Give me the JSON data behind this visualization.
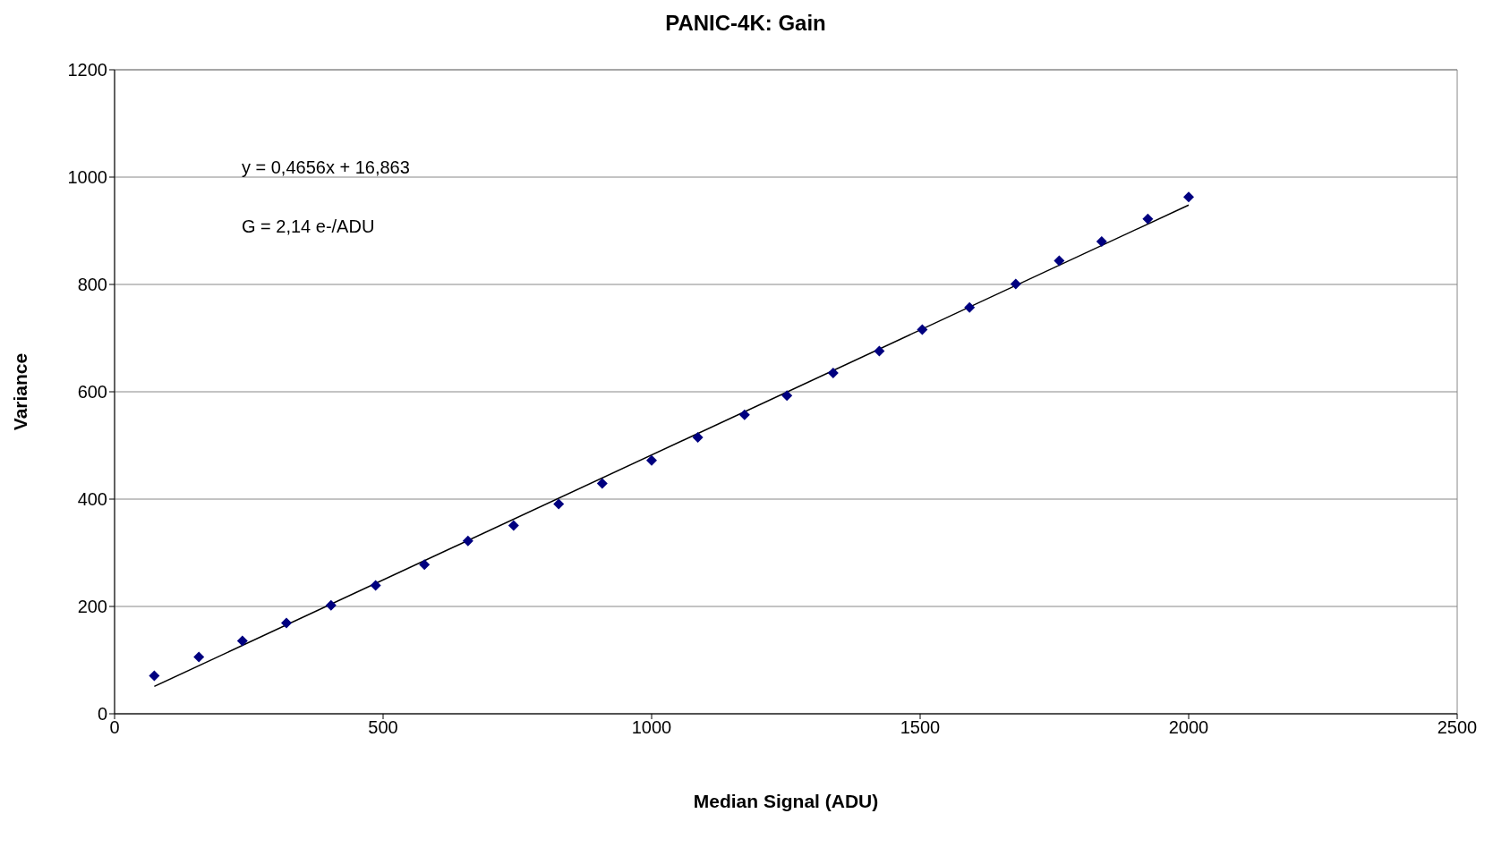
{
  "chart_data": {
    "type": "scatter",
    "title": "PANIC-4K:  Gain",
    "xlabel": "Median Signal (ADU)",
    "ylabel": "Variance",
    "annotations": [
      "y = 0,4656x + 16,863",
      "G = 2,14 e-/ADU"
    ],
    "xlim": [
      0,
      2500
    ],
    "xticks": [
      0,
      500,
      1000,
      1500,
      2000,
      2500
    ],
    "ylim": [
      0,
      1200
    ],
    "yticks": [
      0,
      200,
      400,
      600,
      800,
      1000,
      1200
    ],
    "grid": "y",
    "legend": false,
    "marker": "diamond",
    "series": [
      {
        "color": "#000080",
        "x": [
          74,
          157,
          238,
          320,
          403,
          486,
          577,
          658,
          743,
          827,
          908,
          1000,
          1086,
          1173,
          1252,
          1338,
          1424,
          1504,
          1592,
          1678,
          1759,
          1838,
          1924,
          2000
        ],
        "values": [
          71,
          106,
          136,
          169,
          202,
          239,
          278,
          322,
          351,
          391,
          429,
          472,
          515,
          557,
          593,
          635,
          676,
          716,
          757,
          801,
          844,
          880,
          922,
          963
        ]
      },
      {
        "type": "line",
        "marker": "none",
        "color": "#000000",
        "x": [
          74,
          2000
        ],
        "values": [
          51,
          948
        ]
      }
    ]
  }
}
